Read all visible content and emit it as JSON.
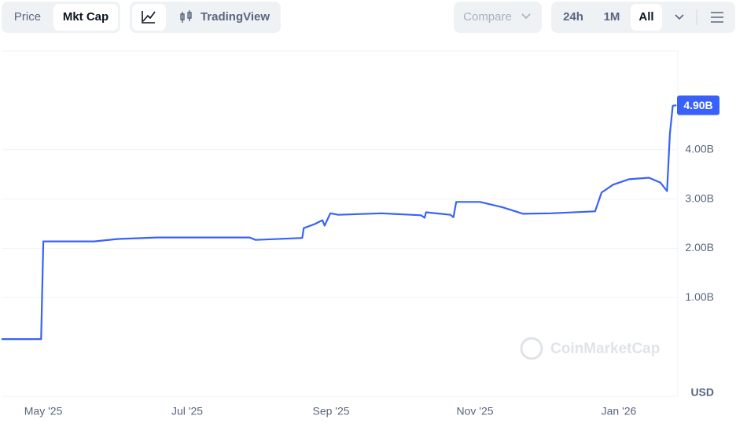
{
  "toolbar": {
    "price": "Price",
    "mkt_cap": "Mkt Cap",
    "trading_view": "TradingView",
    "compare": "Compare",
    "range_24h": "24h",
    "range_1m": "1M",
    "range_all": "All"
  },
  "chart_data": {
    "type": "line",
    "color": "#3861fb",
    "grid": true,
    "watermark": "CoinMarketCap",
    "unit": "USD",
    "x": [
      4.42,
      4.97,
      5.0,
      5.71,
      6.04,
      6.58,
      7.87,
      7.95,
      8.6,
      8.62,
      8.77,
      8.88,
      8.91,
      8.99,
      9.1,
      9.7,
      10.25,
      10.3,
      10.32,
      10.66,
      10.7,
      10.74,
      11.07,
      11.39,
      11.67,
      12.05,
      12.67,
      12.76,
      12.92,
      13.14,
      13.42,
      13.58,
      13.67,
      13.71,
      13.75,
      13.8
    ],
    "values": [
      0.16,
      0.16,
      2.14,
      2.14,
      2.19,
      2.22,
      2.22,
      2.17,
      2.21,
      2.41,
      2.49,
      2.57,
      2.46,
      2.71,
      2.68,
      2.71,
      2.67,
      2.62,
      2.73,
      2.68,
      2.63,
      2.94,
      2.94,
      2.83,
      2.7,
      2.71,
      2.75,
      3.13,
      3.29,
      3.4,
      3.43,
      3.33,
      3.16,
      4.32,
      4.89,
      4.9
    ],
    "value_labels": [
      null,
      null,
      null,
      null,
      null,
      null,
      null,
      null,
      null,
      null,
      null,
      null,
      null,
      null,
      null,
      null,
      null,
      null,
      null,
      null,
      null,
      null,
      null,
      null,
      null,
      null,
      null,
      null,
      null,
      null,
      null,
      null,
      null,
      null,
      null,
      "4.90B"
    ],
    "xlim": [
      4.42,
      13.82
    ],
    "xticks": [
      {
        "value": 5,
        "label": "May '25"
      },
      {
        "value": 7,
        "label": "Jul '25"
      },
      {
        "value": 9,
        "label": "Sep '25"
      },
      {
        "value": 11,
        "label": "Nov '25"
      },
      {
        "value": 13,
        "label": "Jan '26"
      }
    ],
    "ylim": [
      -1,
      6
    ],
    "yticks": [
      {
        "value": 1,
        "label": "1.00B"
      },
      {
        "value": 2,
        "label": "2.00B"
      },
      {
        "value": 3,
        "label": "3.00B"
      },
      {
        "value": 4,
        "label": "4.00B"
      }
    ]
  }
}
